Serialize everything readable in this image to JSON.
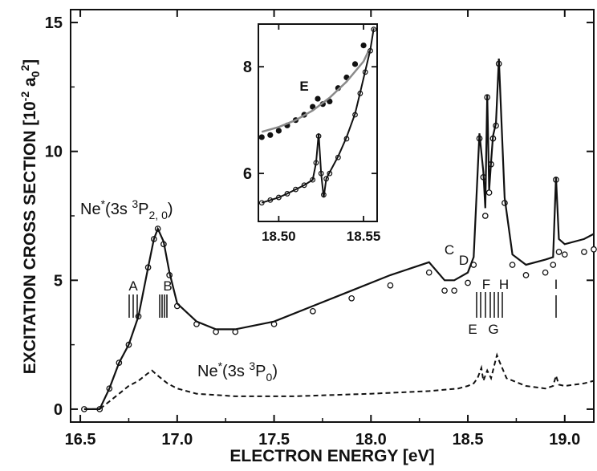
{
  "chart_data": [
    {
      "type": "line",
      "xlabel": "ELECTRON ENERGY [eV]",
      "ylabel_main": "EXCITATION CROSS SECTION [10",
      "ylabel_exp1": "-2",
      "ylabel_a": " a",
      "ylabel_sub": "0",
      "ylabel_exp2": "2",
      "ylabel_close": "]",
      "xlim": [
        16.45,
        19.15
      ],
      "ylim": [
        -0.5,
        15.5
      ],
      "xticks": [
        16.5,
        17.0,
        17.5,
        18.0,
        18.5,
        19.0
      ],
      "xtick_labels": [
        "16.5",
        "17.0",
        "17.5",
        "18.0",
        "18.5",
        "19.0"
      ],
      "yticks": [
        0,
        5,
        10,
        15
      ],
      "ytick_labels": [
        "0",
        "5",
        "10",
        "15"
      ],
      "annotations": {
        "upper": {
          "pre": "Ne",
          "star": "*",
          "mid": "(3s ",
          "sup": "3",
          "P": "P",
          "sub": "2, 0",
          "close": ")"
        },
        "lower": {
          "pre": "Ne",
          "star": "*",
          "mid": "(3s ",
          "sup": "3",
          "P": "P",
          "sub": "0",
          "close": ")"
        }
      },
      "resonance_labels": [
        "A",
        "B",
        "C",
        "D",
        "E",
        "F",
        "G",
        "H",
        "I"
      ],
      "series": [
        {
          "style": "open-circles",
          "x": [
            16.52,
            16.6,
            16.65,
            16.7,
            16.75,
            16.8,
            16.85,
            16.88,
            16.9,
            16.93,
            16.96,
            17.0,
            17.1,
            17.2,
            17.3,
            17.5,
            17.7,
            17.9,
            18.1,
            18.3,
            18.38,
            18.43,
            18.5,
            18.53,
            18.56,
            18.58,
            18.59,
            18.6,
            18.61,
            18.62,
            18.63,
            18.645,
            18.66,
            18.69,
            18.73,
            18.8,
            18.9,
            18.94,
            18.955,
            18.97,
            19.0,
            19.1,
            19.15
          ],
          "y": [
            0.0,
            0.0,
            0.8,
            1.8,
            2.5,
            3.6,
            5.5,
            6.6,
            7.0,
            6.4,
            5.2,
            4.0,
            3.3,
            3.0,
            3.0,
            3.3,
            3.8,
            4.3,
            4.8,
            5.3,
            4.6,
            4.6,
            4.9,
            5.6,
            10.5,
            9.0,
            7.5,
            12.1,
            8.4,
            9.5,
            10.5,
            11.0,
            13.4,
            8.0,
            5.6,
            5.2,
            5.3,
            5.6,
            8.9,
            6.1,
            6.0,
            6.1,
            6.2
          ]
        },
        {
          "style": "solid-fit",
          "x": [
            16.52,
            16.6,
            16.65,
            16.7,
            16.75,
            16.8,
            16.85,
            16.88,
            16.9,
            16.93,
            16.96,
            17.0,
            17.1,
            17.2,
            17.3,
            17.5,
            17.7,
            17.9,
            18.1,
            18.3,
            18.38,
            18.43,
            18.5,
            18.53,
            18.56,
            18.58,
            18.59,
            18.6,
            18.61,
            18.62,
            18.63,
            18.645,
            18.66,
            18.69,
            18.73,
            18.8,
            18.9,
            18.94,
            18.955,
            18.97,
            19.0,
            19.1,
            19.15
          ],
          "y": [
            0.0,
            0.0,
            0.8,
            1.8,
            2.5,
            3.6,
            5.5,
            6.6,
            7.0,
            6.5,
            5.3,
            4.1,
            3.4,
            3.1,
            3.1,
            3.4,
            4.0,
            4.6,
            5.2,
            5.7,
            5.0,
            5.0,
            5.3,
            5.9,
            10.7,
            9.2,
            7.8,
            12.2,
            8.5,
            9.6,
            10.6,
            11.1,
            13.6,
            8.2,
            6.0,
            5.6,
            5.8,
            5.9,
            9.0,
            6.6,
            6.4,
            6.6,
            6.8
          ]
        },
        {
          "style": "dashed",
          "x": [
            16.52,
            16.6,
            16.65,
            16.7,
            16.75,
            16.8,
            16.85,
            16.87,
            16.9,
            16.95,
            17.0,
            17.1,
            17.3,
            17.6,
            18.0,
            18.3,
            18.45,
            18.5,
            18.53,
            18.55,
            18.57,
            18.58,
            18.6,
            18.62,
            18.64,
            18.65,
            18.66,
            18.7,
            18.8,
            18.9,
            18.94,
            18.955,
            18.97,
            19.0,
            19.1,
            19.15
          ],
          "y": [
            0.0,
            0.0,
            0.3,
            0.6,
            0.9,
            1.1,
            1.4,
            1.5,
            1.3,
            1.0,
            0.8,
            0.6,
            0.5,
            0.5,
            0.6,
            0.7,
            0.8,
            0.9,
            1.0,
            1.2,
            1.6,
            1.1,
            1.5,
            1.2,
            1.8,
            2.1,
            1.9,
            1.2,
            0.9,
            0.8,
            0.9,
            1.3,
            0.95,
            0.9,
            1.0,
            1.1
          ]
        }
      ]
    },
    {
      "type": "line",
      "inset": true,
      "xlim": [
        18.488,
        18.558
      ],
      "ylim": [
        5.1,
        8.8
      ],
      "xticks": [
        18.5,
        18.55
      ],
      "xtick_labels": [
        "18.50",
        "18.55"
      ],
      "yticks": [
        6,
        8
      ],
      "ytick_labels": [
        "6",
        "8"
      ],
      "annotation": "E",
      "series": [
        {
          "style": "dots",
          "x": [
            18.49,
            18.495,
            18.5,
            18.505,
            18.51,
            18.515,
            18.52,
            18.523,
            18.526,
            18.53,
            18.535,
            18.54,
            18.545,
            18.55
          ],
          "y": [
            6.68,
            6.72,
            6.8,
            6.9,
            7.0,
            7.1,
            7.25,
            7.4,
            7.3,
            7.35,
            7.6,
            7.8,
            8.05,
            8.4
          ]
        },
        {
          "style": "gray-fit",
          "x": [
            18.49,
            18.5,
            18.51,
            18.52,
            18.53,
            18.54,
            18.55,
            18.553
          ],
          "y": [
            6.78,
            6.87,
            7.0,
            7.18,
            7.42,
            7.72,
            8.1,
            8.3
          ]
        },
        {
          "style": "open-circles",
          "x": [
            18.49,
            18.495,
            18.5,
            18.505,
            18.51,
            18.515,
            18.52,
            18.522,
            18.5235,
            18.525,
            18.5265,
            18.528,
            18.53,
            18.535,
            18.54,
            18.545,
            18.548,
            18.551,
            18.554,
            18.556
          ],
          "y": [
            5.45,
            5.5,
            5.55,
            5.62,
            5.7,
            5.78,
            5.88,
            6.2,
            6.7,
            6.0,
            5.6,
            5.9,
            6.0,
            6.3,
            6.65,
            7.1,
            7.5,
            7.9,
            8.3,
            8.7
          ]
        },
        {
          "style": "solid-fit",
          "x": [
            18.49,
            18.495,
            18.5,
            18.505,
            18.51,
            18.515,
            18.52,
            18.522,
            18.5235,
            18.525,
            18.5265,
            18.528,
            18.53,
            18.535,
            18.54,
            18.545,
            18.548,
            18.551,
            18.554,
            18.556
          ],
          "y": [
            5.45,
            5.5,
            5.55,
            5.62,
            5.7,
            5.78,
            5.88,
            6.2,
            6.75,
            6.0,
            5.55,
            5.9,
            6.02,
            6.32,
            6.68,
            7.12,
            7.52,
            7.92,
            8.32,
            8.72
          ]
        }
      ]
    }
  ]
}
